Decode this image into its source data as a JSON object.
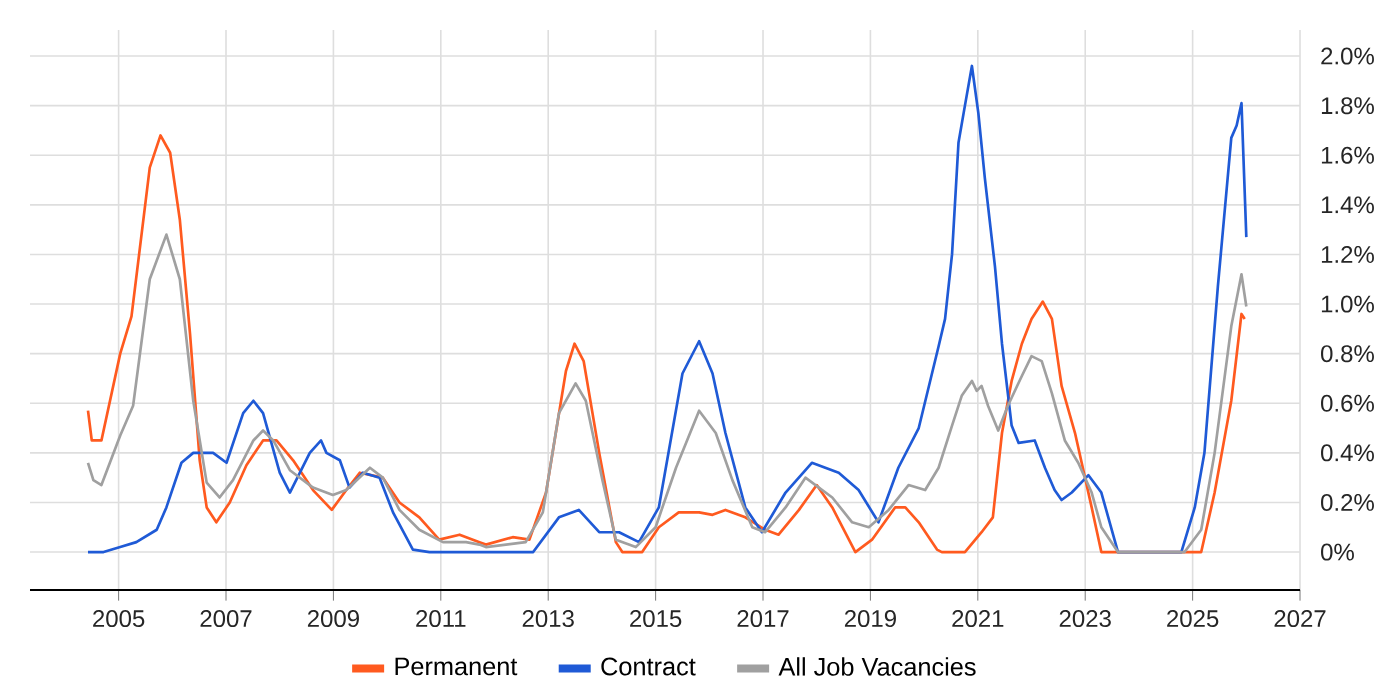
{
  "chart_data": {
    "type": "line",
    "xlim": [
      2003.35,
      2027
    ],
    "ylim": [
      -0.153,
      2.105
    ],
    "xticks": [
      2005,
      2007,
      2009,
      2011,
      2013,
      2015,
      2017,
      2019,
      2021,
      2023,
      2025,
      2027
    ],
    "yticks": [
      {
        "value": 0,
        "label": "0%"
      },
      {
        "value": 0.2,
        "label": "0.2%"
      },
      {
        "value": 0.4,
        "label": "0.4%"
      },
      {
        "value": 0.6,
        "label": "0.6%"
      },
      {
        "value": 0.8,
        "label": "0.8%"
      },
      {
        "value": 1.0,
        "label": "1.0%"
      },
      {
        "value": 1.2,
        "label": "1.2%"
      },
      {
        "value": 1.4,
        "label": "1.4%"
      },
      {
        "value": 1.6,
        "label": "1.6%"
      },
      {
        "value": 1.8,
        "label": "1.8%"
      },
      {
        "value": 2.0,
        "label": "2.0%"
      }
    ],
    "grid": true,
    "legend": "bottom",
    "marker": "none",
    "line_style": "solid",
    "series": [
      {
        "name": "Permanent",
        "color": "#ff5a1f",
        "x": [
          2004.43,
          2004.5,
          2004.68,
          2005.03,
          2005.24,
          2005.58,
          2005.78,
          2005.96,
          2006.14,
          2006.33,
          2006.51,
          2006.64,
          2006.82,
          2007.07,
          2007.38,
          2007.69,
          2007.94,
          2008.25,
          2008.62,
          2008.97,
          2009.24,
          2009.49,
          2009.92,
          2010.23,
          2010.6,
          2010.97,
          2011.35,
          2011.72,
          2011.84,
          2012.34,
          2012.65,
          2012.96,
          2013.33,
          2013.49,
          2013.66,
          2013.95,
          2014.26,
          2014.38,
          2014.75,
          2015.06,
          2015.43,
          2015.81,
          2016.06,
          2016.3,
          2016.67,
          2017.04,
          2017.29,
          2017.67,
          2018.0,
          2018.29,
          2018.72,
          2019.03,
          2019.46,
          2019.65,
          2019.9,
          2020.24,
          2020.33,
          2020.76,
          2021.07,
          2021.28,
          2021.45,
          2021.63,
          2021.82,
          2022.0,
          2022.21,
          2022.38,
          2022.56,
          2022.81,
          2023.12,
          2023.3,
          2025.16,
          2025.41,
          2025.72,
          2025.91,
          2025.97
        ],
        "values": [
          0.57,
          0.45,
          0.45,
          0.8,
          0.95,
          1.55,
          1.68,
          1.61,
          1.34,
          0.88,
          0.37,
          0.18,
          0.12,
          0.2,
          0.35,
          0.45,
          0.45,
          0.37,
          0.25,
          0.17,
          0.25,
          0.32,
          0.3,
          0.2,
          0.14,
          0.05,
          0.07,
          0.04,
          0.03,
          0.06,
          0.05,
          0.24,
          0.73,
          0.84,
          0.77,
          0.4,
          0.04,
          0,
          0,
          0.1,
          0.16,
          0.16,
          0.15,
          0.17,
          0.14,
          0.09,
          0.07,
          0.17,
          0.27,
          0.18,
          0,
          0.05,
          0.18,
          0.18,
          0.12,
          0.01,
          0,
          0,
          0.08,
          0.14,
          0.48,
          0.69,
          0.84,
          0.94,
          1.01,
          0.94,
          0.67,
          0.48,
          0.18,
          0,
          0,
          0.24,
          0.61,
          0.96,
          0.94
        ]
      },
      {
        "name": "Contract",
        "color": "#1f5ad6",
        "x": [
          2004.43,
          2004.72,
          2005.03,
          2005.33,
          2005.71,
          2005.89,
          2006.17,
          2006.39,
          2006.76,
          2007.01,
          2007.32,
          2007.51,
          2007.69,
          2008.0,
          2008.19,
          2008.56,
          2008.77,
          2008.87,
          2009.12,
          2009.3,
          2009.55,
          2009.86,
          2010.11,
          2010.48,
          2010.79,
          2012.72,
          2013.2,
          2013.57,
          2013.95,
          2014.32,
          2014.69,
          2015.06,
          2015.5,
          2015.81,
          2016.06,
          2016.3,
          2016.67,
          2016.98,
          2017.42,
          2017.91,
          2018.41,
          2018.78,
          2019.15,
          2019.52,
          2019.9,
          2020.27,
          2020.39,
          2020.52,
          2020.64,
          2020.76,
          2020.89,
          2021.01,
          2021.13,
          2021.32,
          2021.45,
          2021.63,
          2021.76,
          2022.06,
          2022.25,
          2022.43,
          2022.56,
          2022.75,
          2023.06,
          2023.3,
          2023.61,
          2024.79,
          2025.04,
          2025.22,
          2025.47,
          2025.72,
          2025.82,
          2025.91,
          2026.0
        ],
        "values": [
          0,
          0,
          0.02,
          0.04,
          0.09,
          0.18,
          0.36,
          0.4,
          0.4,
          0.36,
          0.56,
          0.61,
          0.56,
          0.32,
          0.24,
          0.4,
          0.45,
          0.4,
          0.37,
          0.26,
          0.32,
          0.3,
          0.16,
          0.01,
          0,
          0,
          0.14,
          0.17,
          0.08,
          0.08,
          0.04,
          0.18,
          0.72,
          0.85,
          0.72,
          0.48,
          0.18,
          0.08,
          0.24,
          0.36,
          0.32,
          0.25,
          0.12,
          0.34,
          0.5,
          0.83,
          0.94,
          1.2,
          1.65,
          1.8,
          1.96,
          1.77,
          1.51,
          1.15,
          0.84,
          0.51,
          0.44,
          0.45,
          0.34,
          0.25,
          0.21,
          0.24,
          0.31,
          0.24,
          0,
          0,
          0.18,
          0.4,
          1.07,
          1.67,
          1.72,
          1.81,
          1.27
        ]
      },
      {
        "name": "All Job Vacancies",
        "color": "#a0a0a0",
        "x": [
          2004.43,
          2004.53,
          2004.68,
          2005.03,
          2005.27,
          2005.58,
          2005.89,
          2006.14,
          2006.39,
          2006.64,
          2006.88,
          2007.13,
          2007.51,
          2007.69,
          2007.88,
          2008.19,
          2008.62,
          2008.99,
          2009.24,
          2009.68,
          2009.92,
          2010.23,
          2010.6,
          2011.04,
          2011.47,
          2011.72,
          2011.84,
          2012.58,
          2012.9,
          2013.2,
          2013.51,
          2013.7,
          2014.01,
          2014.26,
          2014.63,
          2015.0,
          2015.38,
          2015.81,
          2016.12,
          2016.43,
          2016.8,
          2017.04,
          2017.42,
          2017.79,
          2018.29,
          2018.66,
          2018.97,
          2019.34,
          2019.71,
          2020.02,
          2020.27,
          2020.52,
          2020.7,
          2020.89,
          2020.98,
          2021.07,
          2021.19,
          2021.38,
          2021.56,
          2021.82,
          2022.0,
          2022.19,
          2022.38,
          2022.62,
          2022.87,
          2023.12,
          2023.3,
          2023.61,
          2024.85,
          2025.16,
          2025.41,
          2025.72,
          2025.91,
          2026.0
        ],
        "values": [
          0.36,
          0.29,
          0.27,
          0.47,
          0.59,
          1.1,
          1.28,
          1.1,
          0.61,
          0.28,
          0.22,
          0.29,
          0.45,
          0.49,
          0.45,
          0.33,
          0.26,
          0.23,
          0.25,
          0.34,
          0.3,
          0.17,
          0.09,
          0.04,
          0.04,
          0.03,
          0.02,
          0.04,
          0.16,
          0.56,
          0.68,
          0.61,
          0.29,
          0.05,
          0.02,
          0.1,
          0.34,
          0.57,
          0.48,
          0.29,
          0.1,
          0.08,
          0.18,
          0.3,
          0.22,
          0.12,
          0.1,
          0.17,
          0.27,
          0.25,
          0.34,
          0.51,
          0.63,
          0.69,
          0.65,
          0.67,
          0.59,
          0.49,
          0.59,
          0.71,
          0.79,
          0.77,
          0.64,
          0.45,
          0.36,
          0.24,
          0.1,
          0,
          0,
          0.09,
          0.4,
          0.91,
          1.12,
          0.99
        ]
      }
    ]
  }
}
